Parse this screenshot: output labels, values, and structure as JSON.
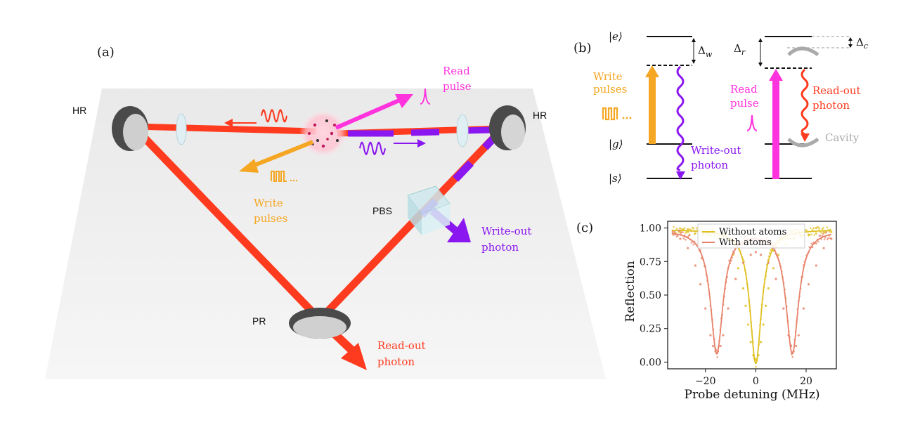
{
  "panel_a": {
    "label": "(a)",
    "mirror_hr_left": "HR",
    "mirror_hr_right": "HR",
    "mirror_pr": "PR",
    "pbs": "PBS",
    "read_pulse": [
      "Read",
      "pulse"
    ],
    "write_pulses": [
      "Write",
      "pulses"
    ],
    "write_out_photon": [
      "Write-out",
      "photon"
    ],
    "read_out_photon": [
      "Read-out",
      "photon"
    ]
  },
  "panel_b": {
    "label": "(b)",
    "ket_e": "|e⟩",
    "ket_g": "|g⟩",
    "ket_s": "|s⟩",
    "delta_w": "Δ",
    "delta_w_sub": "w",
    "delta_r": "Δ",
    "delta_r_sub": "r",
    "delta_c": "Δ",
    "delta_c_sub": "c",
    "write_pulses": [
      "Write",
      "pulses"
    ],
    "write_out_photon": [
      "Write-out",
      "photon"
    ],
    "read_pulse": [
      "Read",
      "pulse"
    ],
    "read_out_photon": [
      "Read-out",
      "photon"
    ],
    "cavity": "Cavity"
  },
  "colors": {
    "red_beam": "#ff3b1f",
    "orange": "#f5a623",
    "magenta": "#ff33dd",
    "purple": "#8b17f0",
    "gray": "#aaaaaa",
    "chart_yellow": "#e0c020",
    "chart_salmon": "#e8826a"
  },
  "chart_data": {
    "type": "scatter",
    "panel_label": "(c)",
    "xlabel": "Probe detuning (MHz)",
    "ylabel": "Reflection",
    "xlim": [
      -35,
      32
    ],
    "ylim": [
      -0.05,
      1.05
    ],
    "x_ticks": [
      -20,
      0,
      20
    ],
    "x_tick_labels": [
      "−20",
      "0",
      "20"
    ],
    "y_ticks": [
      0.0,
      0.25,
      0.5,
      0.75,
      1.0
    ],
    "y_tick_labels": [
      "0.00",
      "0.25",
      "0.50",
      "0.75",
      "1.00"
    ],
    "legend_placement": "top-center",
    "series": [
      {
        "name": "Without atoms",
        "color": "#e0c020",
        "model": {
          "dips": [
            {
              "center": 0,
              "width": 2.8,
              "depth": 1.0
            }
          ],
          "baseline": 0.99
        },
        "x": [
          -33,
          -30,
          -27,
          -24,
          -21,
          -18,
          -15,
          -12,
          -9,
          -7,
          -5,
          -4,
          -3,
          -2,
          -1,
          0,
          1,
          2,
          3,
          4,
          5,
          7,
          9,
          12,
          15,
          18,
          21,
          24,
          27,
          30
        ],
        "y": [
          0.98,
          0.97,
          0.97,
          0.96,
          0.95,
          0.94,
          0.92,
          0.88,
          0.8,
          0.7,
          0.55,
          0.42,
          0.28,
          0.15,
          0.05,
          0.02,
          0.05,
          0.15,
          0.28,
          0.42,
          0.55,
          0.7,
          0.8,
          0.88,
          0.92,
          0.94,
          0.95,
          0.96,
          0.97,
          0.97
        ]
      },
      {
        "name": "With atoms",
        "color": "#e8826a",
        "model": {
          "dips": [
            {
              "center": -15.5,
              "width": 3.0,
              "depth": 0.92
            },
            {
              "center": 14.5,
              "width": 3.0,
              "depth": 0.92
            }
          ],
          "baseline": 0.99
        },
        "x": [
          -33,
          -30,
          -27,
          -24,
          -22,
          -20,
          -18,
          -17,
          -16,
          -15.5,
          -15,
          -14,
          -13,
          -11,
          -8,
          -5,
          -2,
          0,
          2,
          5,
          8,
          11,
          13,
          14,
          14.5,
          15,
          16,
          17,
          19,
          21,
          24,
          27,
          30
        ],
        "y": [
          0.96,
          0.92,
          0.85,
          0.72,
          0.58,
          0.4,
          0.2,
          0.12,
          0.08,
          0.07,
          0.08,
          0.12,
          0.2,
          0.4,
          0.62,
          0.74,
          0.8,
          0.82,
          0.8,
          0.74,
          0.62,
          0.4,
          0.2,
          0.12,
          0.07,
          0.08,
          0.12,
          0.2,
          0.4,
          0.58,
          0.72,
          0.85,
          0.92
        ]
      }
    ]
  }
}
